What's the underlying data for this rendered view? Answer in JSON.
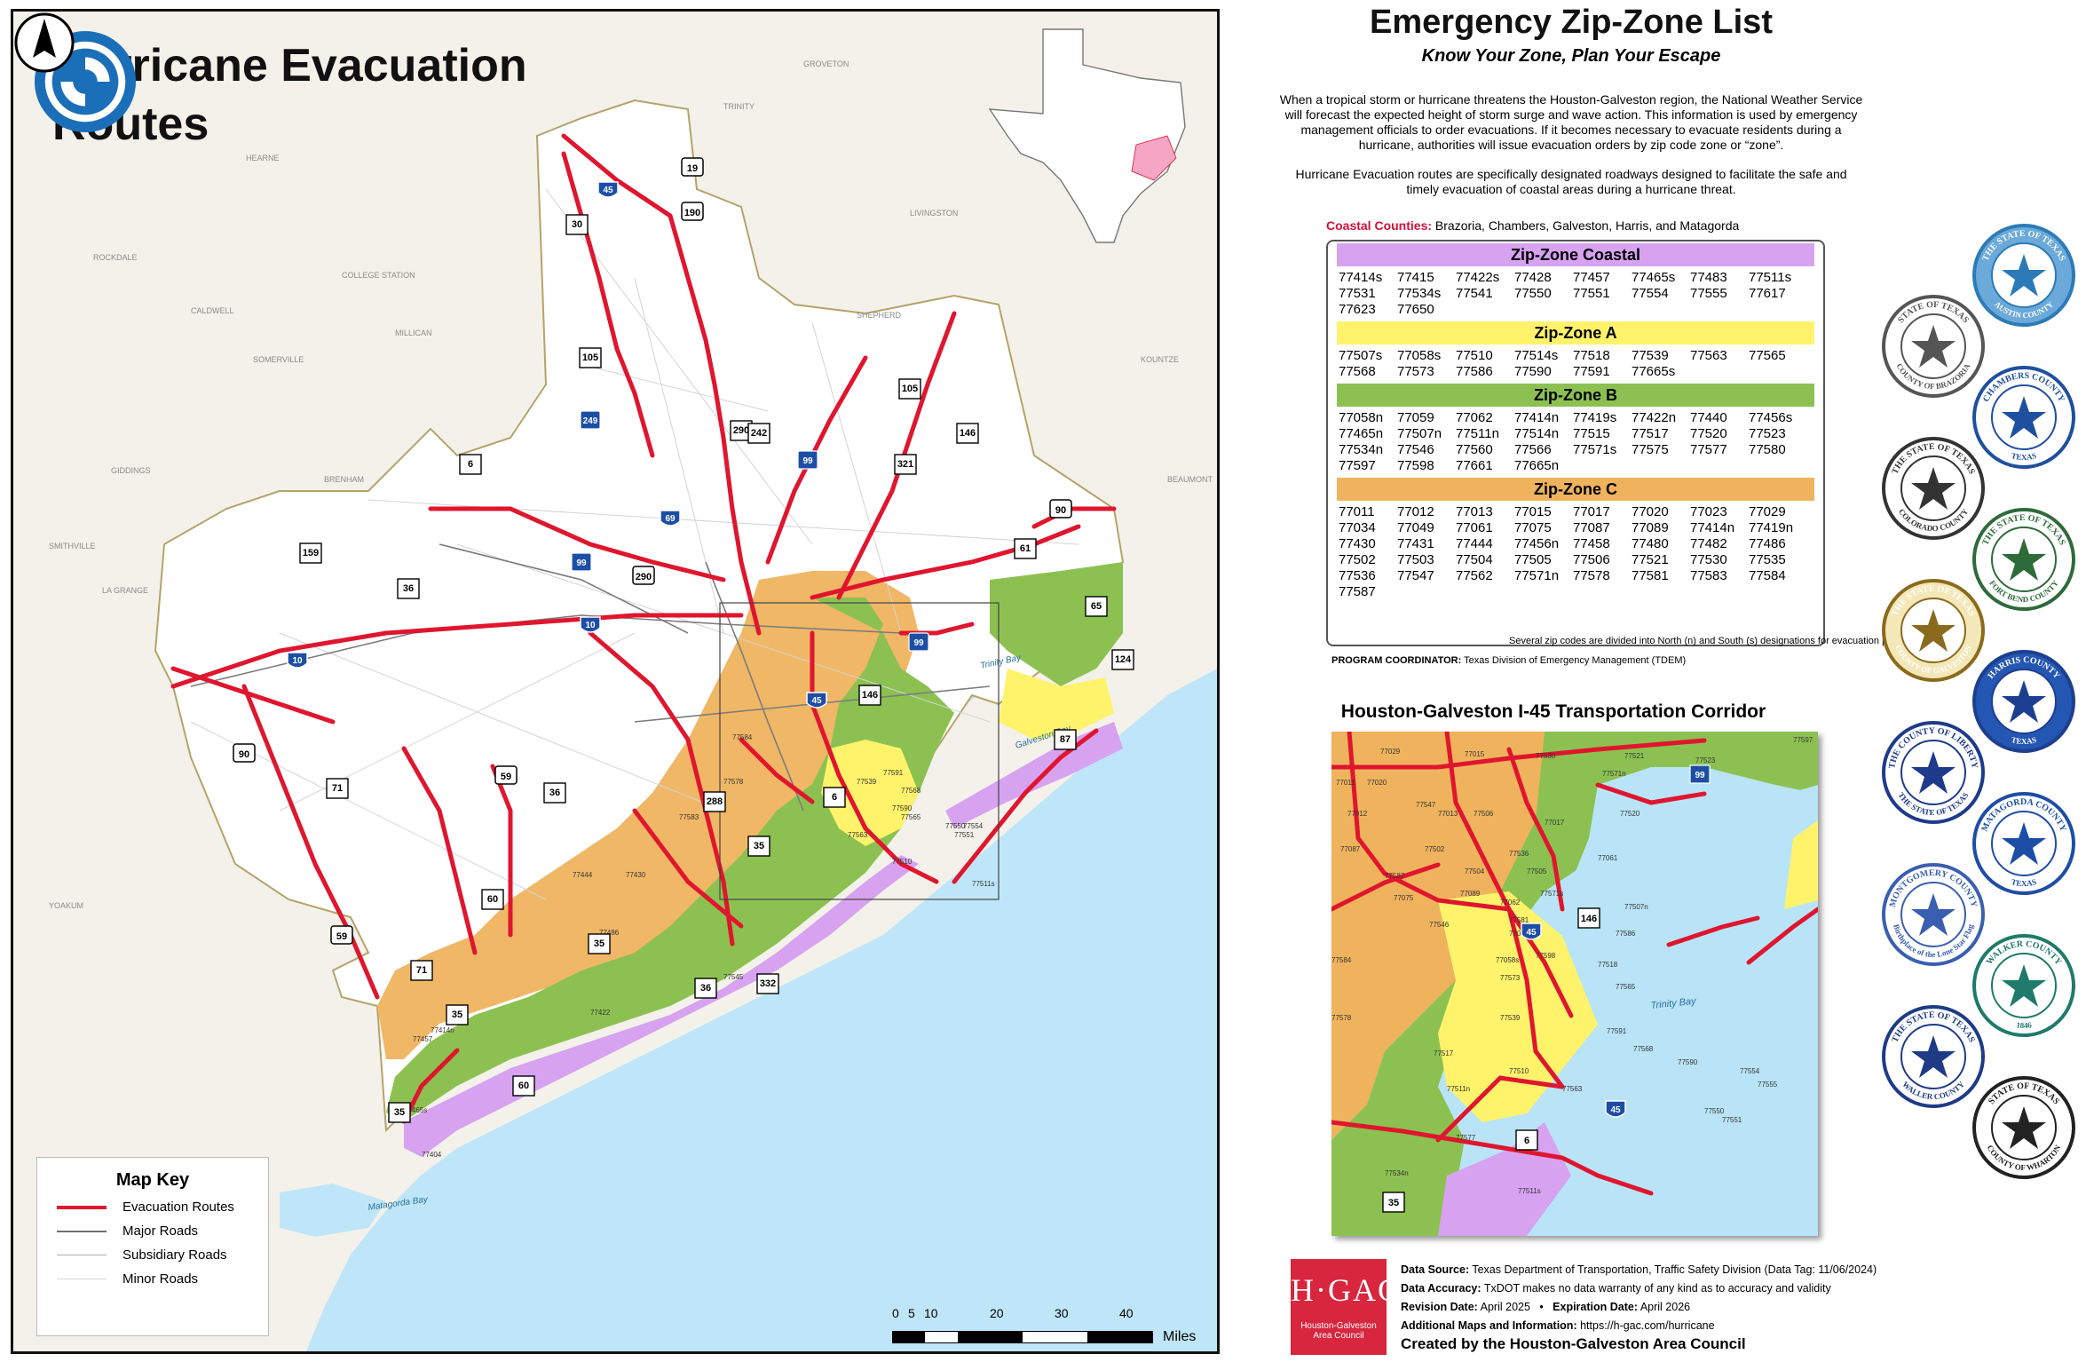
{
  "map": {
    "title": "Hurricane Evacuation\nRoutes",
    "logo": "nws-hurricane-icon",
    "key": {
      "title": "Map Key",
      "items": [
        {
          "label": "Evacuation Routes",
          "color": "#e0152e"
        },
        {
          "label": "Major Roads",
          "color": "#6f6f6f"
        },
        {
          "label": "Subsidiary Roads",
          "color": "#a9a9a9"
        },
        {
          "label": "Minor Roads",
          "color": "#d4d4d4"
        }
      ]
    },
    "scale": {
      "ticks": [
        "0",
        "5",
        "10",
        "20",
        "30",
        "40"
      ],
      "unit": "Miles"
    },
    "north_arrow": "north-arrow-icon",
    "colors": {
      "zone_coastal": "#d7a2f0",
      "zone_a": "#fff36b",
      "zone_b": "#8cc152",
      "zone_c": "#efb35e",
      "water": "#bfe6f8",
      "evac": "#e0152e"
    },
    "place_labels": [
      "GROVETON",
      "TRINITY",
      "HEARNE",
      "LIVINGSTON",
      "ROCKDALE",
      "COLLEGE STATION",
      "CALDWELL",
      "SHEPHERD",
      "MILLICAN",
      "SOMERVILLE",
      "KOUNTZE",
      "GIDDINGS",
      "BRENHAM",
      "BEAUMONT",
      "SMITHVILLE",
      "LA GRANGE",
      "YOAKUM"
    ],
    "water_labels": [
      "Trinity Bay",
      "Galveston Bay",
      "Matagorda Bay"
    ],
    "highways": [
      "45",
      "19",
      "190",
      "30",
      "105",
      "249",
      "6",
      "290",
      "242",
      "105",
      "146",
      "321",
      "99",
      "69",
      "90",
      "159",
      "36",
      "99",
      "290",
      "10",
      "10",
      "61",
      "65",
      "124",
      "99",
      "146",
      "87",
      "45",
      "90",
      "71",
      "59",
      "36",
      "288",
      "6",
      "35",
      "60",
      "59",
      "71",
      "35",
      "36",
      "332",
      "35",
      "60",
      "35"
    ],
    "zip_labels": [
      "77511s",
      "77565",
      "77539",
      "77591",
      "77568",
      "77590",
      "77550",
      "77554",
      "77551",
      "77563",
      "77510",
      "77584",
      "77578",
      "77583",
      "77577",
      "77545",
      "77444",
      "77430",
      "77486",
      "77422",
      "77414n",
      "77465s",
      "77457",
      "77404"
    ]
  },
  "panel": {
    "title": "Emergency Zip-Zone List",
    "subtitle": "Know Your Zone, Plan Your Escape",
    "intro_1": "When a tropical storm or hurricane threatens the Houston-Galveston region, the National Weather Service will forecast the expected height of storm surge and wave action. This information is used by emergency management officials to order evacuations. If it becomes necessary to evacuate residents during a hurricane, authorities will issue evacuation orders by zip code zone or “zone”.",
    "intro_2": "Hurricane Evacuation routes are specifically designated roadways designed to facilitate the safe and timely evacuation of coastal areas during a hurricane threat.",
    "coastal_label": "Coastal Counties:",
    "coastal_counties": "Brazoria, Chambers, Galveston, Harris, and Matagorda",
    "zones": [
      {
        "name": "Zip-Zone Coastal",
        "color": "#d7a2f0",
        "codes": [
          "77414s",
          "77415",
          "77422s",
          "77428",
          "77457",
          "77465s",
          "77483",
          "77511s",
          "77531",
          "77534s",
          "77541",
          "77550",
          "77551",
          "77554",
          "77555",
          "77617",
          "77623",
          "77650"
        ]
      },
      {
        "name": "Zip-Zone A",
        "color": "#fff36b",
        "codes": [
          "77507s",
          "77058s",
          "77510",
          "77514s",
          "77518",
          "77539",
          "77563",
          "77565",
          "77568",
          "77573",
          "77586",
          "77590",
          "77591",
          "77665s"
        ]
      },
      {
        "name": "Zip-Zone B",
        "color": "#8cc152",
        "codes": [
          "77058n",
          "77059",
          "77062",
          "77414n",
          "77419s",
          "77422n",
          "77440",
          "77456s",
          "77465n",
          "77507n",
          "77511n",
          "77514n",
          "77515",
          "77517",
          "77520",
          "77523",
          "77534n",
          "77546",
          "77560",
          "77566",
          "77571s",
          "77575",
          "77577",
          "77580",
          "77597",
          "77598",
          "77661",
          "77665n"
        ]
      },
      {
        "name": "Zip-Zone C",
        "color": "#efb35e",
        "codes": [
          "77011",
          "77012",
          "77013",
          "77015",
          "77017",
          "77020",
          "77023",
          "77029",
          "77034",
          "77049",
          "77061",
          "77075",
          "77087",
          "77089",
          "77414n",
          "77419n",
          "77430",
          "77431",
          "77444",
          "77456n",
          "77458",
          "77480",
          "77482",
          "77486",
          "77502",
          "77503",
          "77504",
          "77505",
          "77506",
          "77521",
          "77530",
          "77535",
          "77536",
          "77547",
          "77562",
          "77571n",
          "77578",
          "77581",
          "77583",
          "77584",
          "77587"
        ]
      }
    ],
    "footnote": "Several zip codes are divided into North (n) and South (s) designations for evacuation planning.",
    "program_label": "PROGRAM COORDINATOR:",
    "program_value": "Texas Division of Emergency Management (TDEM)",
    "corridor_title": "Houston-Galveston I-45 Transportation Corridor",
    "inset_zips": [
      "77597",
      "77029",
      "77015",
      "77530",
      "77521",
      "77523",
      "77011",
      "77020",
      "77547",
      "77571n",
      "77520",
      "77012",
      "77013",
      "77506",
      "77017",
      "77087",
      "77502",
      "77536",
      "77061",
      "77587",
      "77504",
      "77505",
      "77571s",
      "77075",
      "77089",
      "77062",
      "77507n",
      "77581",
      "77546",
      "77058n",
      "77586",
      "77584",
      "77598",
      "77058s",
      "77518",
      "77573",
      "77565",
      "77578",
      "77539",
      "77591",
      "77568",
      "77517",
      "77590",
      "77510",
      "77511n",
      "77563",
      "77554",
      "77555",
      "77550",
      "77551",
      "77577",
      "77534n",
      "77511s"
    ],
    "inset_shields": [
      "146",
      "45",
      "45",
      "6",
      "35",
      "99"
    ],
    "inset_water": "Trinity Bay",
    "seals": [
      {
        "top": "THE STATE OF TEXAS",
        "bottom": "AUSTIN COUNTY",
        "color": "#2c7bb8",
        "fill": "#6aa9d9",
        "icon": "austin-county-seal-icon"
      },
      {
        "top": "STATE OF TEXAS",
        "bottom": "COUNTY OF BRAZORIA",
        "color": "#555555",
        "fill": "#ffffff",
        "icon": "brazoria-county-seal-icon"
      },
      {
        "top": "CHAMBERS COUNTY",
        "bottom": "TEXAS",
        "color": "#1f4f9e",
        "fill": "#ffffff",
        "icon": "chambers-county-seal-icon"
      },
      {
        "top": "THE STATE OF TEXAS",
        "bottom": "COLORADO COUNTY",
        "color": "#333333",
        "fill": "#ffffff",
        "icon": "colorado-county-seal-icon"
      },
      {
        "top": "THE STATE OF TEXAS",
        "bottom": "FORT BEND COUNTY",
        "color": "#2e6b3a",
        "fill": "#ffffff",
        "icon": "fort-bend-county-seal-icon"
      },
      {
        "top": "THE STATE OF TEXAS",
        "bottom": "COUNTY OF GALVESTON",
        "color": "#8a6a1c",
        "fill": "#f4e7b8",
        "icon": "galveston-county-seal-icon"
      },
      {
        "top": "HARRIS COUNTY",
        "bottom": "TEXAS",
        "color": "#1d3f8f",
        "fill": "#2456b3",
        "icon": "harris-county-seal-icon"
      },
      {
        "top": "THE COUNTY OF LIBERTY",
        "bottom": "THE STATE OF TEXAS",
        "color": "#1e3a8a",
        "fill": "#ffffff",
        "icon": "liberty-county-seal-icon"
      },
      {
        "top": "MATAGORDA COUNTY",
        "bottom": "TEXAS",
        "color": "#1d4ea6",
        "fill": "#ffffff",
        "icon": "matagorda-county-seal-icon"
      },
      {
        "top": "MONTGOMERY COUNTY",
        "bottom": "Birthplace of the Lone Star Flag",
        "color": "#3a5fb0",
        "fill": "#ffffff",
        "icon": "montgomery-county-seal-icon"
      },
      {
        "top": "WALKER COUNTY",
        "bottom": "1846",
        "color": "#1f7a6b",
        "fill": "#ffffff",
        "icon": "walker-county-seal-icon"
      },
      {
        "top": "THE STATE OF TEXAS",
        "bottom": "WALLER COUNTY",
        "color": "#1f3b86",
        "fill": "#ffffff",
        "icon": "waller-county-seal-icon"
      },
      {
        "top": "STATE OF TEXAS",
        "bottom": "COUNTY OF WHARTON",
        "color": "#222222",
        "fill": "#ffffff",
        "icon": "wharton-county-seal-icon"
      }
    ],
    "hgac": {
      "mark": "H·GAC",
      "name": "Houston-Galveston Area Council"
    },
    "data_source_label": "Data Source:",
    "data_source": "Texas Department of Transportation, Traffic Safety Division  (Data Tag: 11/06/2024)",
    "accuracy_label": "Data Accuracy:",
    "accuracy": "TxDOT makes no data warranty of any kind as to accuracy and validity",
    "revision_label": "Revision Date:",
    "revision": "April 2025",
    "expiration_label": "Expiration Date:",
    "expiration": "April 2026",
    "more_label": "Additional Maps and Information:",
    "more": "https://h-gac.com/hurricane",
    "created": "Created by the Houston-Galveston Area Council"
  }
}
